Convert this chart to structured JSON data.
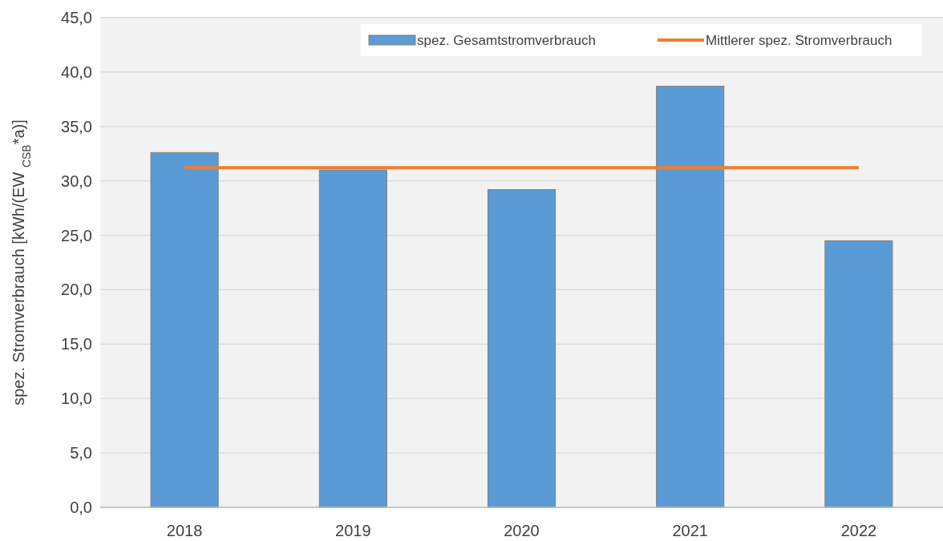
{
  "chart_data": {
    "type": "bar",
    "ylabel": "spez. Stromverbrauch [kWh/(EW $_{CSB}$*a)]",
    "categories": [
      "2018",
      "2019",
      "2020",
      "2021",
      "2022"
    ],
    "series": [
      {
        "name": "spez. Gesamtstromverbrauch",
        "color": "#5b9bd5",
        "values": [
          32.6,
          31.0,
          29.2,
          38.7,
          24.5
        ]
      },
      {
        "name": "Mittlerer spez. Stromverbrauch",
        "type": "line",
        "color": "#ed7d31",
        "values": [
          31.2,
          31.2,
          31.2,
          31.2,
          31.2
        ]
      }
    ],
    "ylim": [
      0,
      45
    ],
    "yticks": [
      {
        "value": 0,
        "label": "0,0"
      },
      {
        "value": 5,
        "label": "5,0"
      },
      {
        "value": 10,
        "label": "10,0"
      },
      {
        "value": 15,
        "label": "15,0"
      },
      {
        "value": 20,
        "label": "20,0"
      },
      {
        "value": 25,
        "label": "25,0"
      },
      {
        "value": 30,
        "label": "30,0"
      },
      {
        "value": 35,
        "label": "35,0"
      },
      {
        "value": 40,
        "label": "40,0"
      },
      {
        "value": 45,
        "label": "45,0"
      }
    ],
    "grid": "y",
    "legend": "top right",
    "marker": "none"
  }
}
